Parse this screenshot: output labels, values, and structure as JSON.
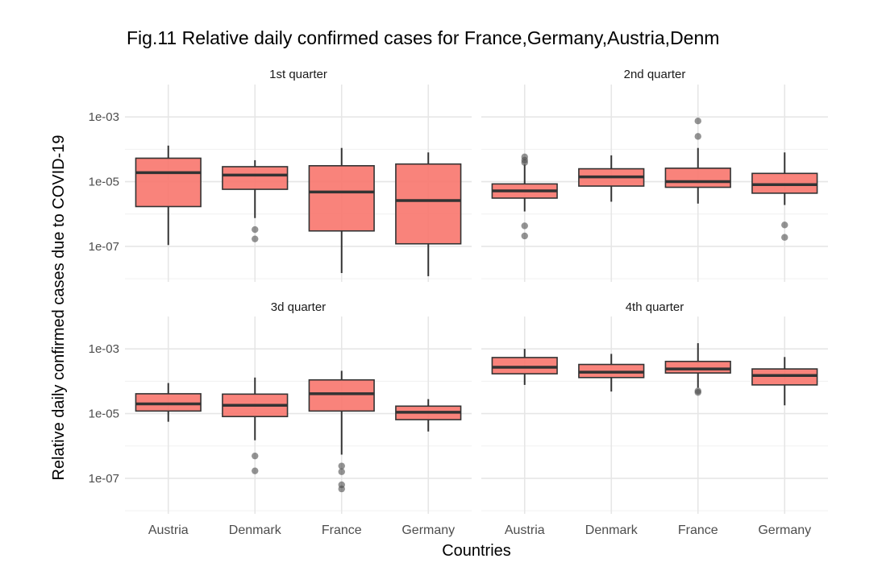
{
  "chart_data": {
    "type": "boxplot",
    "title": "Fig.11 Relative daily confirmed cases for  France,Germany,Austria,Denm",
    "xlabel": "Countries",
    "ylabel": "Relative daily confirmed cases  due to COVID-19",
    "y_scale": "log10",
    "y_ticks": [
      "1e-03",
      "1e-05",
      "1e-07"
    ],
    "y_tick_values": [
      0.001,
      1e-05,
      1e-07
    ],
    "ylim": [
      8e-09,
      0.01
    ],
    "categories": [
      "Austria",
      "Denmark",
      "France",
      "Germany"
    ],
    "fill_color": "#F8766D",
    "facets": [
      {
        "label": "1st quarter",
        "boxes": [
          {
            "country": "Austria",
            "whisker_low": 1.1e-07,
            "q1": 1.7e-06,
            "median": 1.9e-05,
            "q3": 5.3e-05,
            "whisker_high": 0.00013,
            "outliers": []
          },
          {
            "country": "Denmark",
            "whisker_low": 7.5e-07,
            "q1": 5.8e-06,
            "median": 1.6e-05,
            "q3": 2.9e-05,
            "whisker_high": 4.6e-05,
            "outliers": [
              3.3e-07,
              1.7e-07
            ]
          },
          {
            "country": "France",
            "whisker_low": 1.5e-08,
            "q1": 3e-07,
            "median": 4.8e-06,
            "q3": 3.1e-05,
            "whisker_high": 0.00011,
            "outliers": []
          },
          {
            "country": "Germany",
            "whisker_low": 1.2e-08,
            "q1": 1.2e-07,
            "median": 2.6e-06,
            "q3": 3.5e-05,
            "whisker_high": 8e-05,
            "outliers": []
          }
        ]
      },
      {
        "label": "2nd quarter",
        "boxes": [
          {
            "country": "Austria",
            "whisker_low": 1.2e-06,
            "q1": 3.1e-06,
            "median": 5.2e-06,
            "q3": 8.5e-06,
            "whisker_high": 3.4e-05,
            "outliers": [
              5.8e-05,
              4.6e-05,
              3.9e-05,
              4.3e-07,
              2.1e-07
            ]
          },
          {
            "country": "Denmark",
            "whisker_low": 2.4e-06,
            "q1": 7.3e-06,
            "median": 1.4e-05,
            "q3": 2.5e-05,
            "whisker_high": 6.5e-05,
            "outliers": []
          },
          {
            "country": "France",
            "whisker_low": 2.1e-06,
            "q1": 6.7e-06,
            "median": 1e-05,
            "q3": 2.6e-05,
            "whisker_high": 0.00011,
            "outliers": [
              0.00075,
              0.00025
            ]
          },
          {
            "country": "Germany",
            "whisker_low": 1.9e-06,
            "q1": 4.4e-06,
            "median": 8.1e-06,
            "q3": 1.8e-05,
            "whisker_high": 8e-05,
            "outliers": [
              4.6e-07,
              1.9e-07
            ]
          }
        ]
      },
      {
        "label": "3d quarter",
        "boxes": [
          {
            "country": "Austria",
            "whisker_low": 5.6e-06,
            "q1": 1.2e-05,
            "median": 2e-05,
            "q3": 4.1e-05,
            "whisker_high": 8.8e-05,
            "outliers": []
          },
          {
            "country": "Denmark",
            "whisker_low": 1.5e-06,
            "q1": 8.1e-06,
            "median": 1.8e-05,
            "q3": 4e-05,
            "whisker_high": 0.00013,
            "outliers": [
              4.9e-07,
              1.7e-07
            ]
          },
          {
            "country": "France",
            "whisker_low": 5.4e-07,
            "q1": 1.2e-05,
            "median": 4.1e-05,
            "q3": 0.00011,
            "whisker_high": 0.00021,
            "outliers": [
              2.4e-07,
              1.6e-07,
              6.3e-08,
              4.7e-08
            ]
          },
          {
            "country": "Germany",
            "whisker_low": 2.8e-06,
            "q1": 6.5e-06,
            "median": 1.1e-05,
            "q3": 1.7e-05,
            "whisker_high": 2.8e-05,
            "outliers": []
          }
        ]
      },
      {
        "label": "4th quarter",
        "boxes": [
          {
            "country": "Austria",
            "whisker_low": 7.7e-05,
            "q1": 0.00017,
            "median": 0.00027,
            "q3": 0.00054,
            "whisker_high": 0.001,
            "outliers": []
          },
          {
            "country": "Denmark",
            "whisker_low": 4.8e-05,
            "q1": 0.00013,
            "median": 0.00019,
            "q3": 0.00033,
            "whisker_high": 0.0007,
            "outliers": []
          },
          {
            "country": "France",
            "whisker_low": 6.3e-05,
            "q1": 0.00018,
            "median": 0.00024,
            "q3": 0.00041,
            "whisker_high": 0.0015,
            "outliers": [
              5e-05,
              4.5e-05
            ]
          },
          {
            "country": "Germany",
            "whisker_low": 1.8e-05,
            "q1": 7.7e-05,
            "median": 0.00015,
            "q3": 0.00024,
            "whisker_high": 0.00056,
            "outliers": []
          }
        ]
      }
    ]
  }
}
